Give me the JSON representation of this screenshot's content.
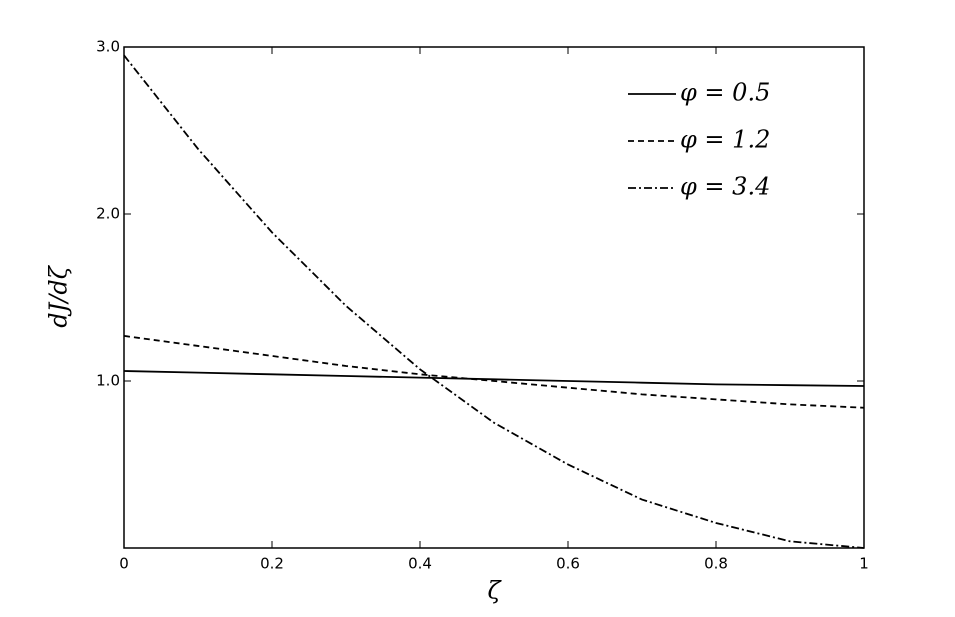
{
  "chart_data": {
    "type": "line",
    "x_label": "ζ",
    "y_label": "dJ/dζ",
    "x": [
      0,
      0.1,
      0.2,
      0.3,
      0.4,
      0.5,
      0.6,
      0.7,
      0.8,
      0.9,
      1
    ],
    "series": [
      {
        "name": "φ = 0.5",
        "color": "#000000",
        "linestyle": "solid",
        "values": [
          1.06,
          1.05,
          1.04,
          1.03,
          1.02,
          1.01,
          1.0,
          0.99,
          0.98,
          0.975,
          0.97
        ]
      },
      {
        "name": "φ = 1.2",
        "color": "#000000",
        "linestyle": "dashed",
        "values": [
          1.27,
          1.21,
          1.15,
          1.09,
          1.04,
          1.0,
          0.96,
          0.92,
          0.89,
          0.86,
          0.84
        ]
      },
      {
        "name": "φ = 3.4",
        "color": "#000000",
        "linestyle": "dashdot",
        "values": [
          2.95,
          2.39,
          1.89,
          1.45,
          1.07,
          0.75,
          0.5,
          0.29,
          0.15,
          0.04,
          0
        ]
      }
    ],
    "xlim": [
      0,
      1
    ],
    "ylim": [
      0,
      3
    ],
    "xticks": [
      0,
      0.2,
      0.4,
      0.6,
      0.8,
      1
    ],
    "yticks": [
      {
        "value": 1,
        "label": "1.0"
      },
      {
        "value": 2,
        "label": "2.0"
      },
      {
        "value": 3,
        "label": "3.0"
      }
    ],
    "grid": false,
    "legend": "upper right"
  }
}
